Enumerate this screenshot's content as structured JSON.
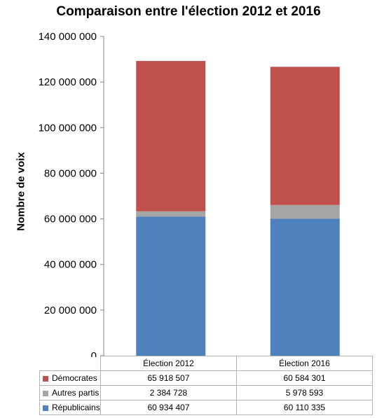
{
  "chart_data": {
    "type": "bar",
    "stacked": true,
    "title": "Comparaison entre l'élection 2012 et 2016",
    "xlabel": "",
    "ylabel": "Nombre de voix",
    "ylim": [
      0,
      140000000
    ],
    "yticks": [
      0,
      20000000,
      40000000,
      60000000,
      80000000,
      100000000,
      120000000,
      140000000
    ],
    "ytick_labels": [
      "0",
      "20 000 000",
      "40 000 000",
      "60 000 000",
      "80 000 000",
      "100 000 000",
      "120 000 000",
      "140 000 000"
    ],
    "grid": false,
    "legend_placement": "data-table",
    "categories": [
      "Élection 2012",
      "Élection 2016"
    ],
    "series": [
      {
        "name": "Républicains",
        "color": "#4f81bd",
        "values": [
          60934407,
          60110335
        ],
        "labels": [
          "60 934 407",
          "60 110 335"
        ]
      },
      {
        "name": "Autres partis",
        "color": "#a5a5a5",
        "values": [
          2384728,
          5978593
        ],
        "labels": [
          "2 384 728",
          "5 978 593"
        ]
      },
      {
        "name": "Démocrates",
        "color": "#c0504d",
        "values": [
          65918507,
          60584301
        ],
        "labels": [
          "65 918 507",
          "60 584 301"
        ]
      }
    ]
  }
}
